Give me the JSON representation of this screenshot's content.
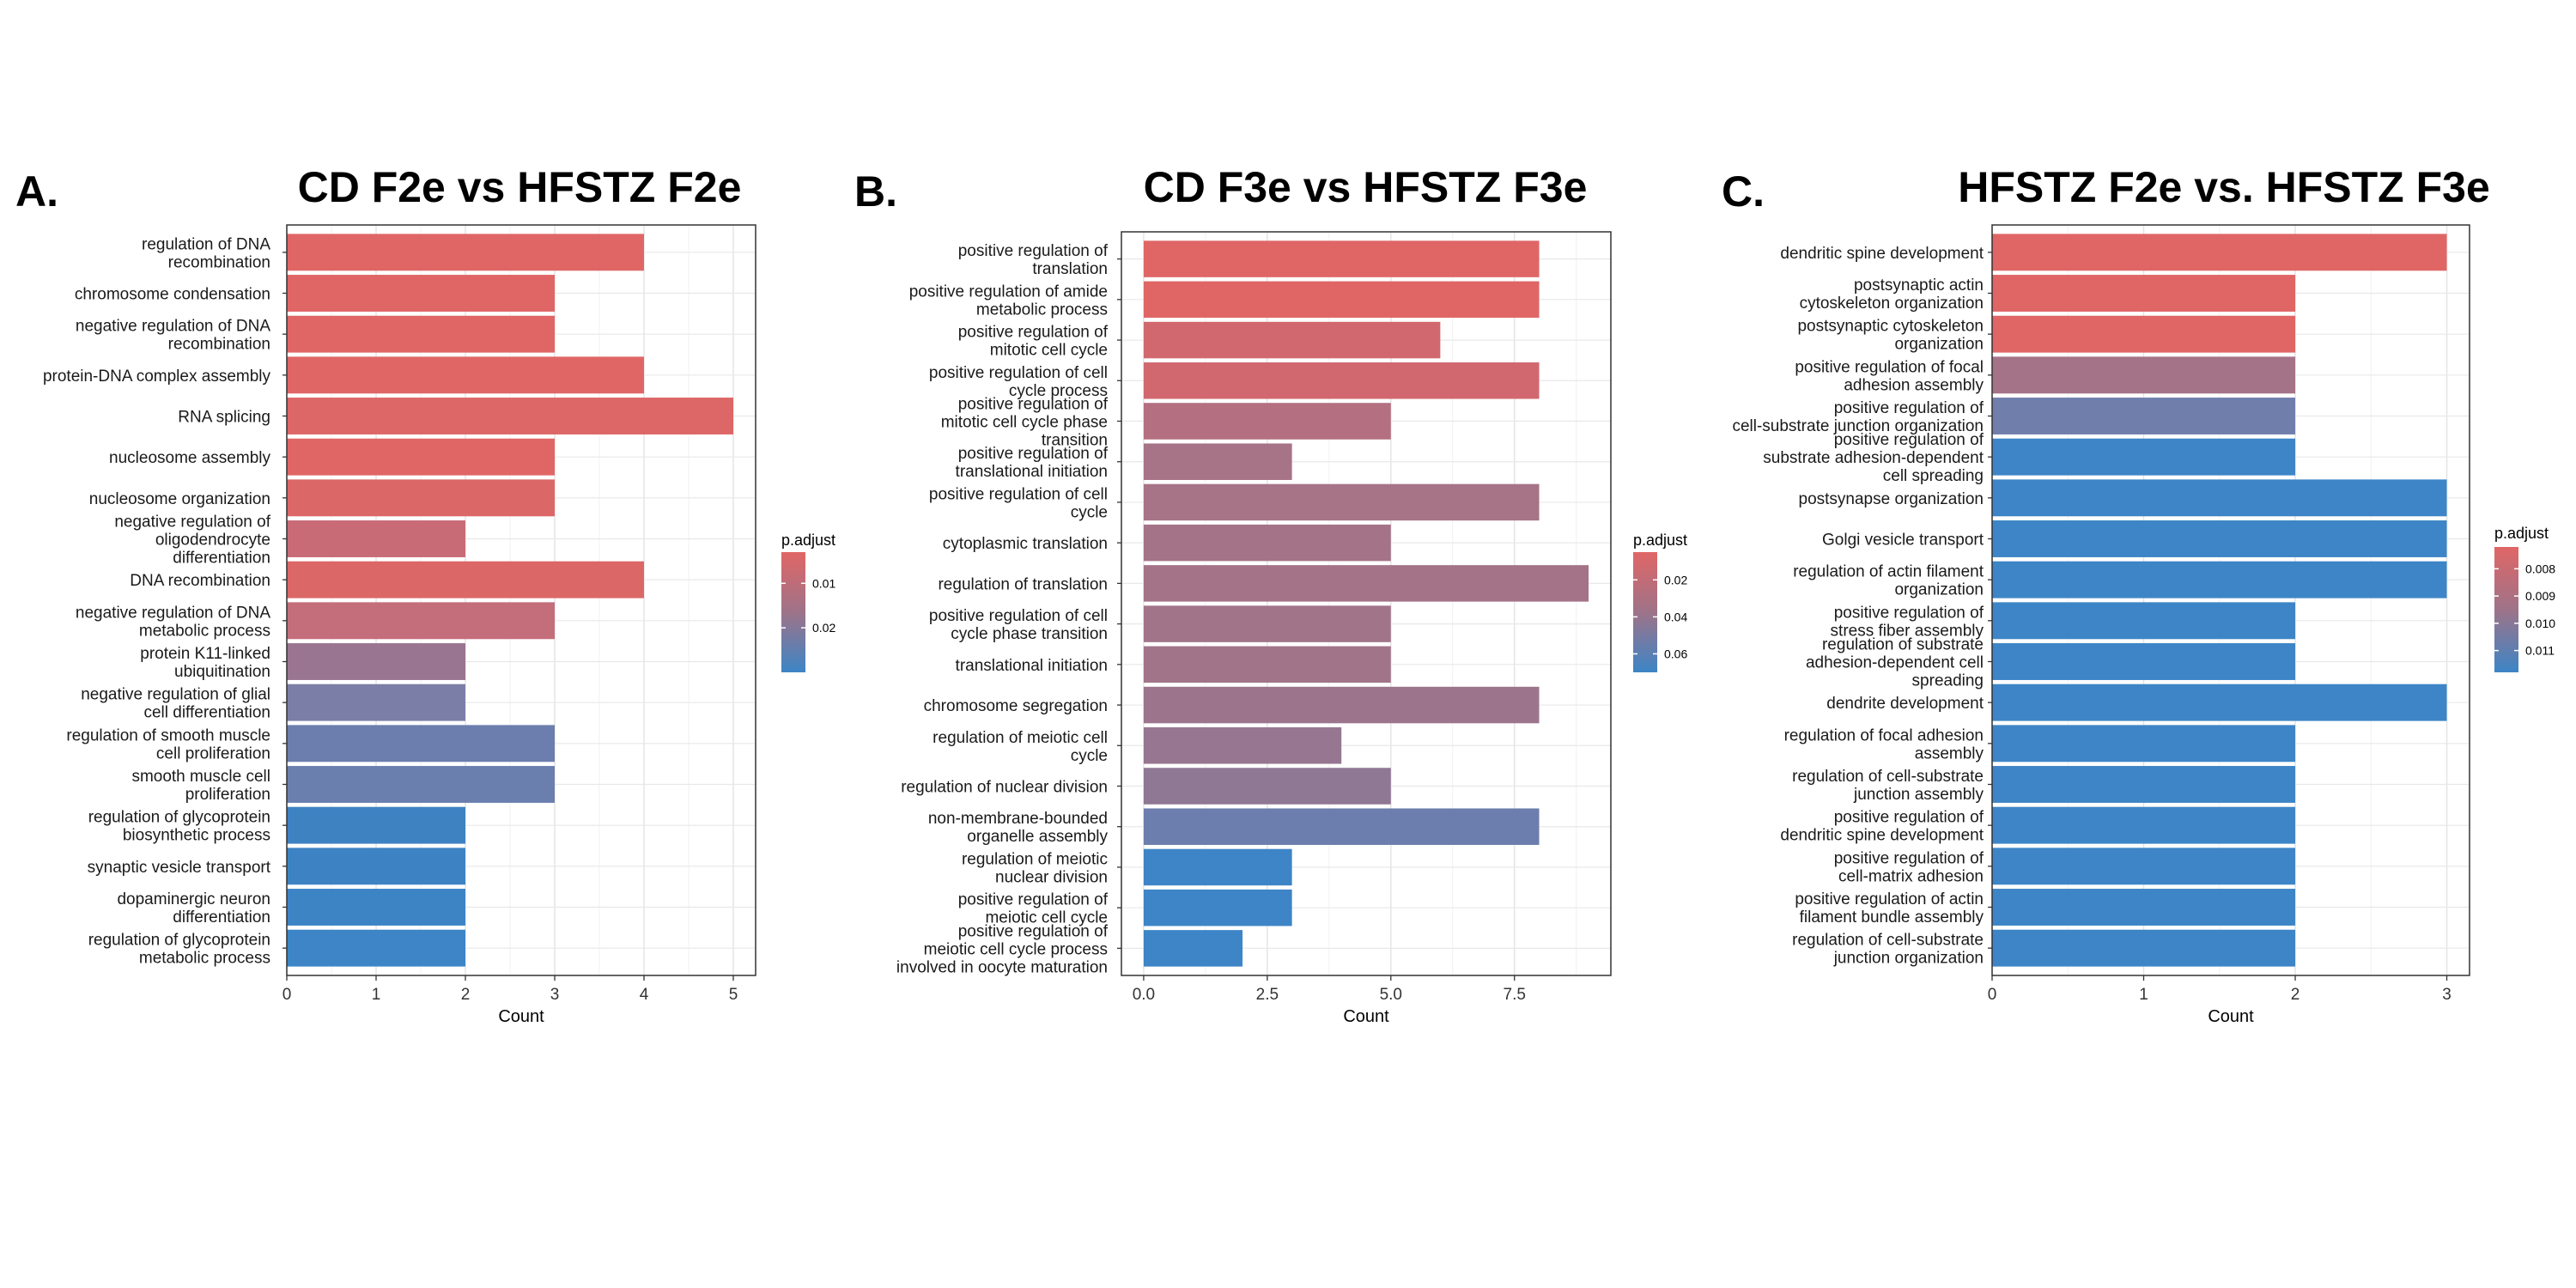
{
  "chart_data": [
    {
      "panel_letter": "A.",
      "type": "bar",
      "orientation": "horizontal",
      "title": "CD F2e vs HFSTZ F2e",
      "xlabel": "Count",
      "xlim": [
        0,
        5.25
      ],
      "xticks": [
        0,
        1,
        2,
        3,
        4,
        5
      ],
      "tick_labels": [
        "0",
        "1",
        "2",
        "3",
        "4",
        "5"
      ],
      "grid": true,
      "color_scale": {
        "title": "p.adjust",
        "low_color": "#e06666",
        "high_color": "#3d85c6",
        "range": [
          0.003,
          0.03
        ],
        "ticks": [
          0.01,
          0.02
        ],
        "tick_labels": [
          "0.01",
          "0.02"
        ]
      },
      "categories": [
        [
          "regulation of DNA",
          "recombination"
        ],
        [
          "chromosome condensation"
        ],
        [
          "negative regulation of DNA",
          "recombination"
        ],
        [
          "protein-DNA complex assembly"
        ],
        [
          "RNA splicing"
        ],
        [
          "nucleosome assembly"
        ],
        [
          "nucleosome organization"
        ],
        [
          "negative regulation of",
          "oligodendrocyte",
          "differentiation"
        ],
        [
          "DNA recombination"
        ],
        [
          "negative regulation of DNA",
          "metabolic process"
        ],
        [
          "protein K11-linked",
          "ubiquitination"
        ],
        [
          "negative regulation of glial",
          "cell differentiation"
        ],
        [
          "regulation of smooth muscle",
          "cell proliferation"
        ],
        [
          "smooth muscle cell",
          "proliferation"
        ],
        [
          "regulation of glycoprotein",
          "biosynthetic process"
        ],
        [
          "synaptic vesicle transport"
        ],
        [
          "dopaminergic neuron",
          "differentiation"
        ],
        [
          "regulation of glycoprotein",
          "metabolic process"
        ]
      ],
      "values": [
        4,
        3,
        3,
        4,
        5,
        3,
        3,
        2,
        4,
        3,
        2,
        2,
        3,
        3,
        2,
        2,
        2,
        2
      ],
      "colors": [
        "#e06666",
        "#e06666",
        "#e06666",
        "#e06666",
        "#dd6666",
        "#e06666",
        "#dc6767",
        "#c96b77",
        "#dc6767",
        "#c46d7b",
        "#9a7591",
        "#7b7fa7",
        "#6c7ead",
        "#6a7fae",
        "#3e82c2",
        "#3d83c4",
        "#3d84c5",
        "#3d85c6"
      ]
    },
    {
      "panel_letter": "B.",
      "type": "bar",
      "orientation": "horizontal",
      "title": "CD F3e vs HFSTZ F3e",
      "xlabel": "Count",
      "xlim": [
        -0.45,
        9.45
      ],
      "xticks": [
        0,
        2.5,
        5,
        7.5
      ],
      "tick_labels": [
        "0.0",
        "2.5",
        "5.0",
        "7.5"
      ],
      "grid": true,
      "color_scale": {
        "title": "p.adjust",
        "low_color": "#e06666",
        "high_color": "#3d85c6",
        "range": [
          0.005,
          0.07
        ],
        "ticks": [
          0.02,
          0.04,
          0.06
        ],
        "tick_labels": [
          "0.02",
          "0.04",
          "0.06"
        ]
      },
      "categories": [
        [
          "positive regulation of",
          "translation"
        ],
        [
          "positive regulation of amide",
          "metabolic process"
        ],
        [
          "positive regulation of",
          "mitotic cell cycle"
        ],
        [
          "positive regulation of cell",
          "cycle process"
        ],
        [
          "positive regulation of",
          "mitotic cell cycle phase",
          "transition"
        ],
        [
          "positive regulation of",
          "translational initiation"
        ],
        [
          "positive regulation of cell",
          "cycle"
        ],
        [
          "cytoplasmic translation"
        ],
        [
          "regulation of translation"
        ],
        [
          "positive regulation of cell",
          "cycle phase transition"
        ],
        [
          "translational initiation"
        ],
        [
          "chromosome segregation"
        ],
        [
          "regulation of meiotic cell",
          "cycle"
        ],
        [
          "regulation of nuclear division"
        ],
        [
          "non-membrane-bounded",
          "organelle assembly"
        ],
        [
          "regulation of meiotic",
          "nuclear division"
        ],
        [
          "positive regulation of",
          "meiotic cell cycle"
        ],
        [
          "positive regulation of",
          "meiotic cell cycle process",
          "involved in oocyte maturation"
        ]
      ],
      "values": [
        8,
        8,
        6,
        8,
        5,
        3,
        8,
        5,
        9,
        5,
        5,
        8,
        4,
        5,
        8,
        3,
        3,
        2
      ],
      "colors": [
        "#e06666",
        "#e06666",
        "#d2686f",
        "#d2686f",
        "#b46f80",
        "#a77386",
        "#a77386",
        "#a47387",
        "#a47387",
        "#a17489",
        "#a17489",
        "#9c758c",
        "#967690",
        "#8f7894",
        "#6c7ead",
        "#3d85c6",
        "#3d85c6",
        "#3d85c6"
      ]
    },
    {
      "panel_letter": "C.",
      "type": "bar",
      "orientation": "horizontal",
      "title": "HFSTZ F2e vs. HFSTZ F3e",
      "xlabel": "Count",
      "xlim": [
        0,
        3.15
      ],
      "xticks": [
        0,
        1,
        2,
        3
      ],
      "tick_labels": [
        "0",
        "1",
        "2",
        "3"
      ],
      "grid": true,
      "color_scale": {
        "title": "p.adjust",
        "low_color": "#e06666",
        "high_color": "#3d85c6",
        "range": [
          0.0072,
          0.0118
        ],
        "ticks": [
          0.008,
          0.009,
          0.01,
          0.011
        ],
        "tick_labels": [
          "0.008",
          "0.009",
          "0.010",
          "0.011"
        ]
      },
      "categories": [
        [
          "dendritic spine development"
        ],
        [
          "postsynaptic actin",
          "cytoskeleton organization"
        ],
        [
          "postsynaptic cytoskeleton",
          "organization"
        ],
        [
          "positive regulation of focal",
          "adhesion assembly"
        ],
        [
          "positive regulation of",
          "cell-substrate junction organization"
        ],
        [
          "positive regulation of",
          "substrate adhesion-dependent",
          "cell spreading"
        ],
        [
          "postsynapse organization"
        ],
        [
          "Golgi vesicle transport"
        ],
        [
          "regulation of actin filament",
          "organization"
        ],
        [
          "positive regulation of",
          "stress fiber assembly"
        ],
        [
          "regulation of substrate",
          "adhesion-dependent cell",
          "spreading"
        ],
        [
          "dendrite development"
        ],
        [
          "regulation of focal adhesion",
          "assembly"
        ],
        [
          "regulation of cell-substrate",
          "junction assembly"
        ],
        [
          "positive regulation of",
          "dendritic spine development"
        ],
        [
          "positive regulation of",
          "cell-matrix adhesion"
        ],
        [
          "positive regulation of actin",
          "filament bundle assembly"
        ],
        [
          "regulation of cell-substrate",
          "junction organization"
        ]
      ],
      "values": [
        3,
        2,
        2,
        2,
        2,
        2,
        3,
        3,
        3,
        2,
        2,
        3,
        2,
        2,
        2,
        2,
        2,
        2
      ],
      "colors": [
        "#e06666",
        "#e06666",
        "#e06666",
        "#a47387",
        "#6f7eab",
        "#3d85c6",
        "#3d85c6",
        "#3d85c6",
        "#3d85c6",
        "#3d85c6",
        "#3d85c6",
        "#3d85c6",
        "#3d85c6",
        "#3d85c6",
        "#3d85c6",
        "#3d85c6",
        "#3d85c6",
        "#3d85c6"
      ]
    }
  ]
}
